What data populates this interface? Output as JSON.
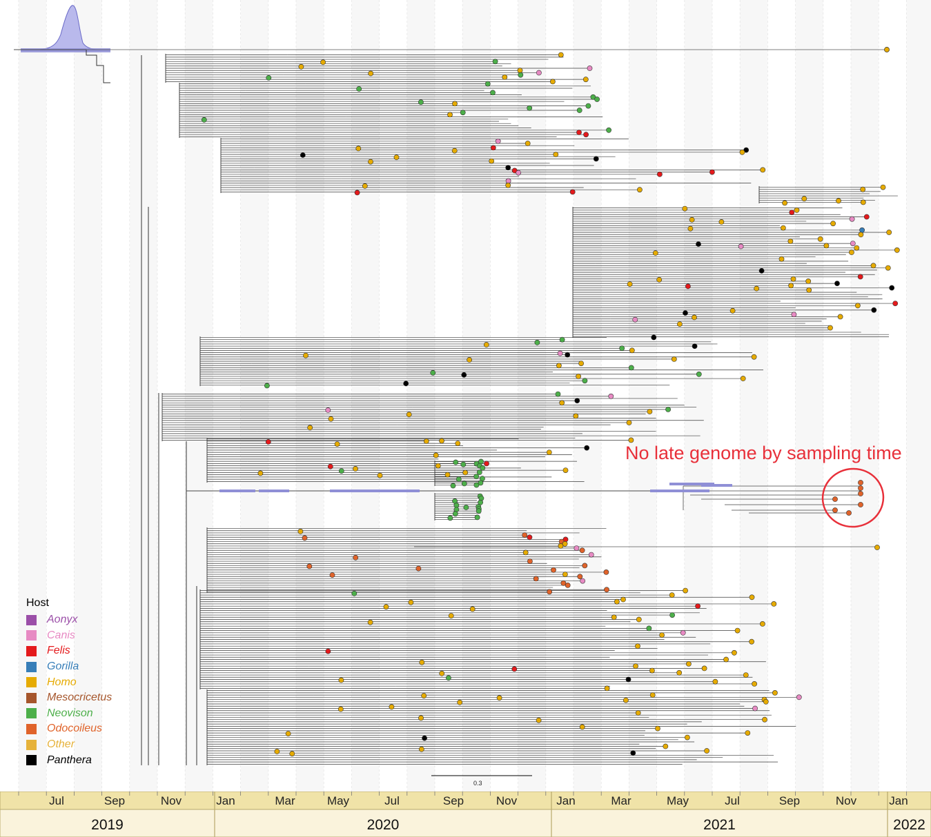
{
  "legend": {
    "title": "Host",
    "items": [
      {
        "label": "Aonyx",
        "color": "#9b4fa8"
      },
      {
        "label": "Canis",
        "color": "#e78ac3"
      },
      {
        "label": "Felis",
        "color": "#e41a1c"
      },
      {
        "label": "Gorilla",
        "color": "#377eb8"
      },
      {
        "label": "Homo",
        "color": "#e6ab02"
      },
      {
        "label": "Mesocricetus",
        "color": "#a6562c"
      },
      {
        "label": "Neovison",
        "color": "#4daf4a"
      },
      {
        "label": "Odocoileus",
        "color": "#e0632a"
      },
      {
        "label": "Other",
        "color": "#e6b23a"
      },
      {
        "label": "Panthera",
        "color": "#000000"
      }
    ]
  },
  "annotation": "No late genome by sampling time",
  "scale_bar": {
    "label": "0.3"
  },
  "timeline": {
    "months": [
      "Jul",
      "Sep",
      "Nov",
      "Jan",
      "Mar",
      "May",
      "Jul",
      "Sep",
      "Nov",
      "Jan",
      "Mar",
      "May",
      "Jul",
      "Sep",
      "Nov",
      "Jan"
    ],
    "years": [
      "2019",
      "2020",
      "2021",
      "2022"
    ]
  },
  "colors": {
    "timeline_band": "#f0e3a8",
    "timeline_year_band": "#faf3dc",
    "highlight_circle": "#e8303a",
    "root_density": "#8f8fd6"
  }
}
